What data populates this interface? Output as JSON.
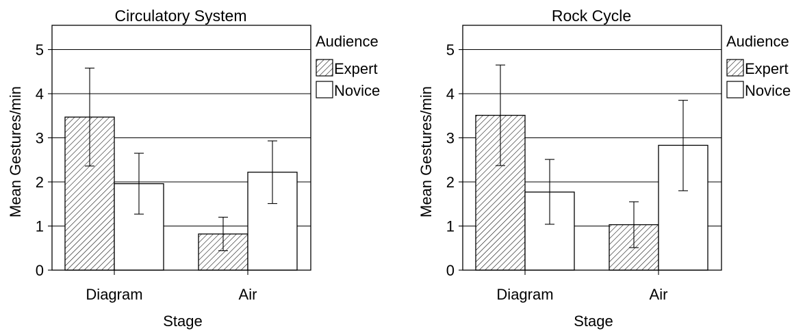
{
  "colors": {
    "ink": "#000000",
    "background": "#ffffff",
    "gridline": "#000000"
  },
  "chart_data": [
    {
      "type": "bar",
      "title": "Circulatory System",
      "xlabel": "Stage",
      "ylabel": "Mean Gestures/min",
      "categories": [
        "Diagram",
        "Air"
      ],
      "ylim": [
        0,
        5.5
      ],
      "yticks": [
        "0",
        "1",
        "2",
        "3",
        "4",
        "5"
      ],
      "grid": true,
      "legend_title": "Audience",
      "legend_position": "right",
      "series": [
        {
          "name": "Expert",
          "fill": "hatched",
          "values": [
            3.47,
            0.82
          ],
          "err_low": [
            2.36,
            0.44
          ],
          "err_high": [
            4.58,
            1.2
          ]
        },
        {
          "name": "Novice",
          "fill": "white",
          "values": [
            1.96,
            2.22
          ],
          "err_low": [
            1.27,
            1.51
          ],
          "err_high": [
            2.65,
            2.93
          ]
        }
      ]
    },
    {
      "type": "bar",
      "title": "Rock Cycle",
      "xlabel": "Stage",
      "ylabel": "Mean Gestures/min",
      "categories": [
        "Diagram",
        "Air"
      ],
      "ylim": [
        0,
        5.5
      ],
      "yticks": [
        "0",
        "1",
        "2",
        "3",
        "4",
        "5"
      ],
      "grid": true,
      "legend_title": "Audience",
      "legend_position": "right",
      "series": [
        {
          "name": "Expert",
          "fill": "hatched",
          "values": [
            3.51,
            1.03
          ],
          "err_low": [
            2.37,
            0.51
          ],
          "err_high": [
            4.65,
            1.55
          ]
        },
        {
          "name": "Novice",
          "fill": "white",
          "values": [
            1.77,
            2.83
          ],
          "err_low": [
            1.04,
            1.8
          ],
          "err_high": [
            2.51,
            3.85
          ]
        }
      ]
    }
  ]
}
